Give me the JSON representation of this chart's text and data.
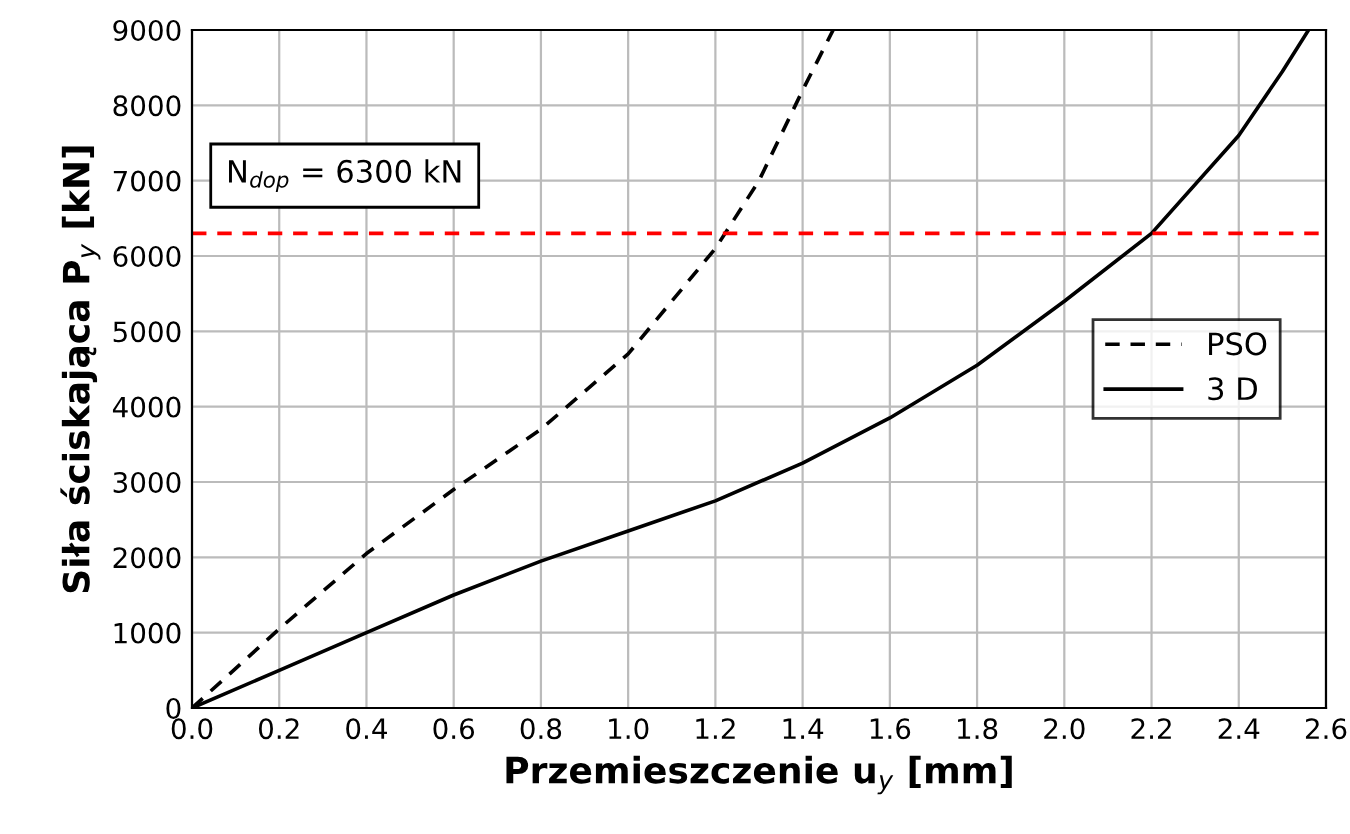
{
  "chart_data": {
    "type": "line",
    "xlabel": "Przemieszczenie u$_{y}$ [mm]",
    "ylabel": "Siła ściskająca P$_{y}$ [kN]",
    "xlim": [
      0,
      2.6
    ],
    "ylim": [
      0,
      9000
    ],
    "xticks": [
      {
        "value": 0,
        "label": "0.0"
      },
      {
        "value": 0.2,
        "label": "0.2"
      },
      {
        "value": 0.4,
        "label": "0.4"
      },
      {
        "value": 0.6,
        "label": "0.6"
      },
      {
        "value": 0.8,
        "label": "0.8"
      },
      {
        "value": 1.0,
        "label": "1.0"
      },
      {
        "value": 1.2,
        "label": "1.2"
      },
      {
        "value": 1.4,
        "label": "1.4"
      },
      {
        "value": 1.6,
        "label": "1.6"
      },
      {
        "value": 1.8,
        "label": "1.8"
      },
      {
        "value": 2.0,
        "label": "2.0"
      },
      {
        "value": 2.2,
        "label": "2.2"
      },
      {
        "value": 2.4,
        "label": "2.4"
      },
      {
        "value": 2.6,
        "label": "2.6"
      }
    ],
    "yticks": [
      0,
      1000,
      2000,
      3000,
      4000,
      5000,
      6000,
      7000,
      8000,
      9000
    ],
    "grid": true,
    "legend": "right",
    "series": [
      {
        "name": "PSO",
        "color": "#000000",
        "line_style": "dashed",
        "x": [
          0,
          0.2,
          0.4,
          0.6,
          0.8,
          1.0,
          1.1,
          1.2,
          1.3,
          1.4,
          1.47
        ],
        "values": [
          0,
          1050,
          2050,
          2900,
          3700,
          4700,
          5400,
          6100,
          7000,
          8200,
          9000
        ]
      },
      {
        "name": "3 D",
        "color": "#000000",
        "line_style": "solid",
        "x": [
          0,
          0.2,
          0.4,
          0.6,
          0.8,
          1.0,
          1.2,
          1.4,
          1.6,
          1.8,
          2.0,
          2.2,
          2.4,
          2.5,
          2.56
        ],
        "values": [
          0,
          500,
          1000,
          1500,
          1950,
          2350,
          2750,
          3250,
          3850,
          4550,
          5400,
          6300,
          7600,
          8450,
          9000
        ]
      }
    ],
    "ref_lines": [
      {
        "axis": "y",
        "value": 6300,
        "label": "N$_{dop}$ = 6300 kN",
        "color": "#ff0000",
        "line_style": "dashed"
      }
    ]
  }
}
